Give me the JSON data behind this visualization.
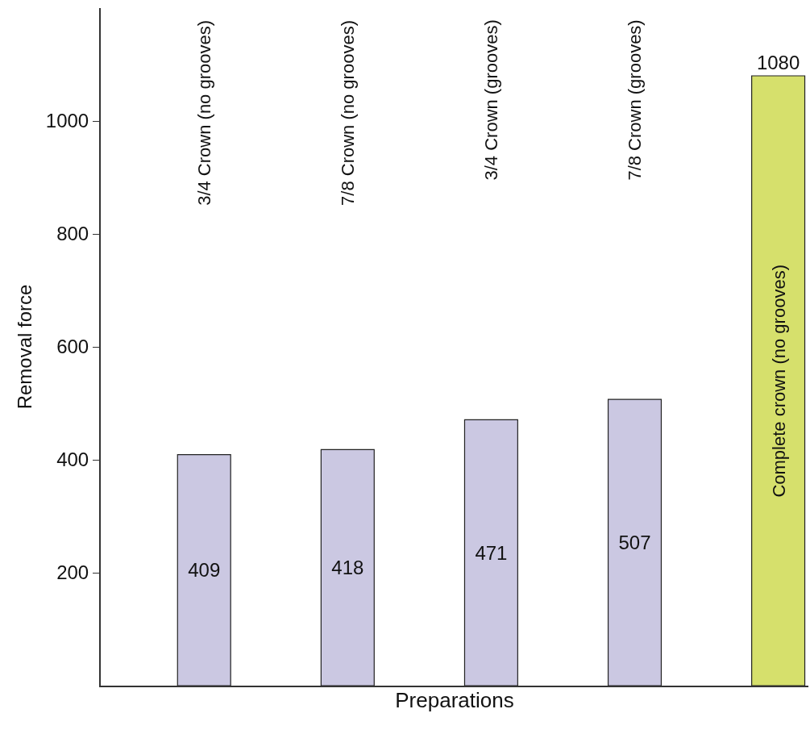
{
  "chart_data": {
    "type": "bar",
    "categories": [
      "3/4 Crown (no grooves)",
      "7/8 Crown (no grooves)",
      "3/4 Crown (grooves)",
      "7/8 Crown (grooves)",
      "Complete crown (no grooves)"
    ],
    "values": [
      409,
      418,
      471,
      507,
      1080
    ],
    "colors": [
      "#cbc8e2",
      "#cbc8e2",
      "#cbc8e2",
      "#cbc8e2",
      "#d6e06c"
    ],
    "xlabel": "Preparations",
    "ylabel": "Removal force",
    "ylim": [
      0,
      1200
    ],
    "yticks": [
      200,
      400,
      600,
      800,
      1000
    ],
    "data_labels": true,
    "tick_labels": "y"
  }
}
